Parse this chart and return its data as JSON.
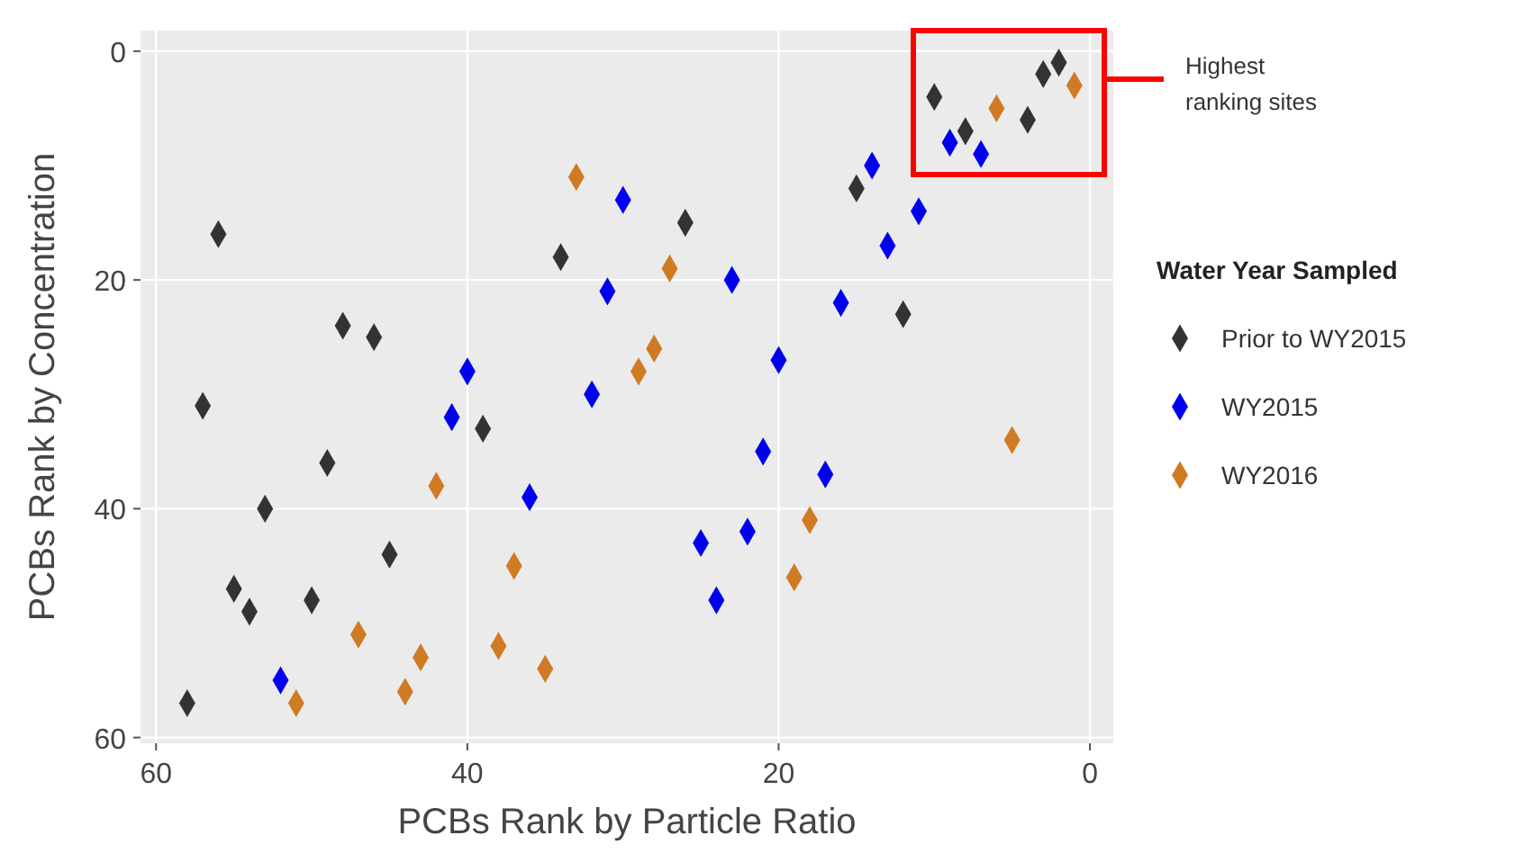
{
  "chart_data": {
    "type": "scatter",
    "xlabel": "PCBs Rank by Particle Ratio",
    "ylabel": "PCBs Rank by Concentration",
    "legend_title": "Water Year Sampled",
    "xlim": [
      61,
      -1.5
    ],
    "ylim": [
      60.5,
      -1.8
    ],
    "xticks": [
      60,
      40,
      20,
      0
    ],
    "yticks": [
      0,
      20,
      40,
      60
    ],
    "grid": true,
    "legend": "right",
    "marker": "diamond",
    "annotations": [
      "Highest ranking sites"
    ],
    "series": [
      {
        "name": "Prior to WY2015",
        "color": "#333333",
        "x": [
          56,
          34,
          48,
          46,
          57,
          39,
          26,
          12,
          15,
          10,
          3,
          2,
          4,
          8,
          49,
          53,
          45,
          55,
          50,
          54,
          58
        ],
        "values": [
          16,
          18,
          24,
          25,
          31,
          33,
          15,
          23,
          12,
          4,
          2,
          1,
          6,
          7,
          36,
          40,
          44,
          47,
          48,
          49,
          57
        ]
      },
      {
        "name": "WY2015",
        "color": "#0000ee",
        "x": [
          40,
          41,
          30,
          31,
          23,
          16,
          20,
          32,
          14,
          11,
          13,
          9,
          7,
          36,
          52,
          21,
          17,
          22,
          25,
          24
        ],
        "values": [
          28,
          32,
          13,
          21,
          20,
          22,
          27,
          30,
          10,
          14,
          17,
          8,
          9,
          39,
          55,
          35,
          37,
          42,
          43,
          48
        ]
      },
      {
        "name": "WY2016",
        "color": "#d07a24",
        "x": [
          33,
          27,
          28,
          29,
          1,
          6,
          42,
          37,
          47,
          38,
          43,
          35,
          44,
          51,
          18,
          19,
          5
        ],
        "values": [
          11,
          19,
          26,
          28,
          3,
          5,
          38,
          45,
          51,
          52,
          53,
          54,
          56,
          57,
          41,
          46,
          34
        ]
      }
    ]
  }
}
